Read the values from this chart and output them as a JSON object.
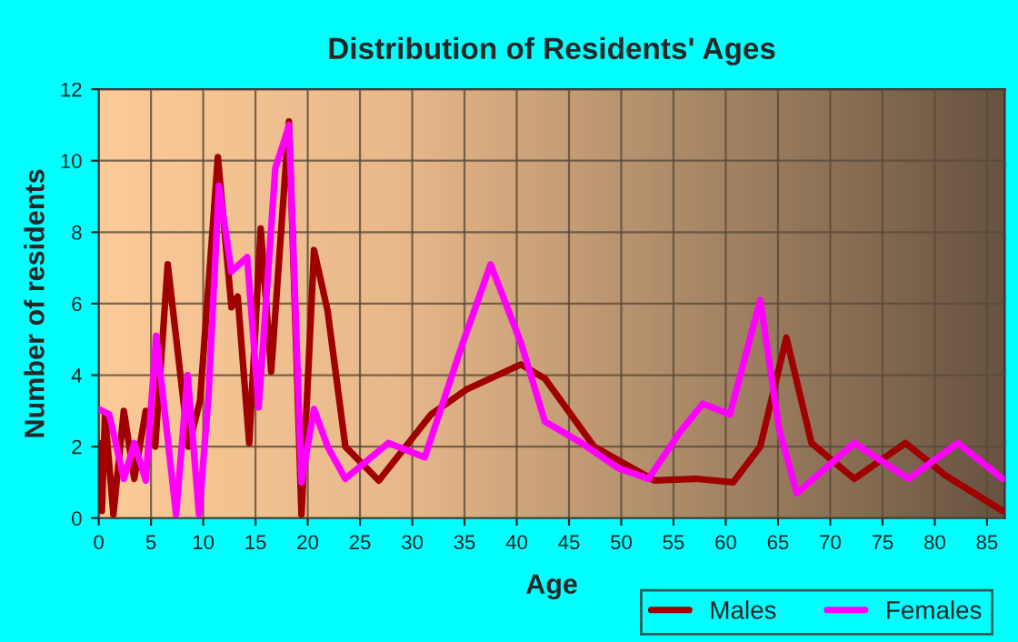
{
  "chart_data": {
    "type": "line",
    "title": "Distribution of Residents' Ages",
    "xlabel": "Age",
    "ylabel": "Number of residents",
    "xlim": [
      0,
      86.7
    ],
    "xticks": [
      0,
      5,
      10,
      15,
      20,
      25,
      30,
      35,
      40,
      45,
      50,
      55,
      60,
      65,
      70,
      75,
      80,
      85
    ],
    "ylim": [
      0,
      12
    ],
    "yticks": [
      0,
      2,
      4,
      6,
      8,
      10,
      12
    ],
    "grid": true,
    "legend": "bottom right",
    "marker": "none",
    "line_style": "solid",
    "series": [
      {
        "name": "Males",
        "color": "#a00000",
        "x": [
          0,
          0.3,
          0.6,
          1.4,
          2.4,
          3.4,
          4.5,
          5.4,
          6.6,
          8.6,
          9.7,
          11.4,
          12.7,
          13.3,
          14.4,
          15.5,
          16.5,
          18.2,
          19.4,
          20.6,
          21.9,
          23.6,
          26.8,
          31.8,
          35.2,
          40.4,
          42.7,
          47.4,
          53.2,
          57.2,
          60.7,
          63.3,
          65.8,
          68.2,
          72.3,
          77.2,
          81.0,
          86.5
        ],
        "values": [
          2.1,
          0.2,
          2.9,
          0.1,
          3,
          1.1,
          3,
          2,
          7.1,
          2,
          3.3,
          10.1,
          5.9,
          6.2,
          2.1,
          8.1,
          4.1,
          11.1,
          0.1,
          7.5,
          5.8,
          2,
          1.05,
          2.9,
          3.6,
          4.3,
          3.9,
          2,
          1.05,
          1.1,
          1,
          2,
          5.05,
          2.1,
          1.1,
          2.1,
          1.2,
          0.2
        ]
      },
      {
        "name": "Females",
        "color": "#ff00ff",
        "x": [
          0,
          1.0,
          2.4,
          3.4,
          4.5,
          5.5,
          7.4,
          8.5,
          9.6,
          10.5,
          11.5,
          12.7,
          14.2,
          15.3,
          16.9,
          17.8,
          18.2,
          19.4,
          20.6,
          21.9,
          23.6,
          27.7,
          31.2,
          34.6,
          37.5,
          40.4,
          42.7,
          46.2,
          49.7,
          52.6,
          55.6,
          57.8,
          60.4,
          63.3,
          65.1,
          66.8,
          68.8,
          72.3,
          77.5,
          82.2,
          86.5
        ],
        "values": [
          3.05,
          2.9,
          1.1,
          2.1,
          1.05,
          5.1,
          0.1,
          4,
          0.1,
          3.4,
          9.3,
          6.9,
          7.3,
          3.1,
          9.8,
          10.6,
          11,
          1,
          3.05,
          2,
          1.1,
          2.1,
          1.7,
          4.7,
          7.1,
          4.9,
          2.7,
          2.1,
          1.4,
          1.1,
          2.4,
          3.2,
          2.9,
          6.1,
          2.5,
          0.7,
          1.2,
          2.1,
          1.1,
          2.1,
          1.1
        ]
      }
    ]
  }
}
